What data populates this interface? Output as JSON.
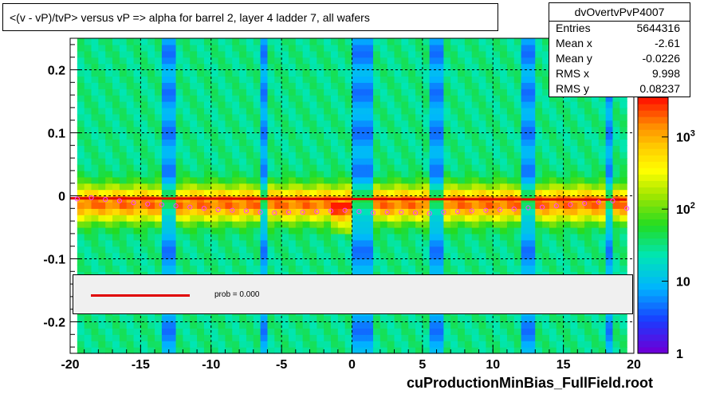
{
  "title": "<(v - vP)/tvP> versus   vP => alpha for barrel 2, layer 4 ladder 7, all wafers",
  "stats": {
    "name": "dvOvertvPvP4007",
    "rows": [
      {
        "label": "Entries",
        "value": "5644316"
      },
      {
        "label": "Mean x",
        "value": "-2.61"
      },
      {
        "label": "Mean y",
        "value": "-0.0226"
      },
      {
        "label": "RMS x",
        "value": "9.998"
      },
      {
        "label": "RMS y",
        "value": "0.08237"
      }
    ]
  },
  "fit_legend": {
    "label": "prob = 0.000"
  },
  "x_title": "cuProductionMinBias_FullField.root",
  "colors": {
    "fit_line": "#e00000",
    "profile_marker": "#ff44ff",
    "legend_bg": "#f0f0f0"
  },
  "chart_data": {
    "type": "heatmap",
    "title": "<(v - vP)/tvP> versus   vP => alpha for barrel 2, layer 4 ladder 7, all wafers",
    "xlim": [
      -20,
      20
    ],
    "ylim": [
      -0.25,
      0.25
    ],
    "x_ticks": [
      -20,
      -15,
      -10,
      -5,
      0,
      5,
      10,
      15,
      20
    ],
    "y_ticks": [
      -0.2,
      -0.1,
      0,
      0.1,
      0.2
    ],
    "y_tick_labels": [
      "-0.2",
      "-0.1",
      "0",
      "0.1",
      "0.2"
    ],
    "grid": true,
    "z_scale": "log",
    "z_ticks": [
      1,
      10,
      100,
      1000
    ],
    "z_tick_labels": [
      "1",
      "10",
      "10^2",
      "10^3"
    ],
    "bright_columns_x": [
      -13,
      -6.2,
      0.1,
      0.5,
      1.3,
      5.9,
      6.2,
      12.5,
      18.4
    ],
    "profile": {
      "name": "profile",
      "x": [
        -19.5,
        -18.5,
        -17.5,
        -16.5,
        -15.5,
        -14.5,
        -13.5,
        -12.5,
        -11.5,
        -10.5,
        -9.5,
        -8.5,
        -7.5,
        -6.5,
        -5.5,
        -4.5,
        -3.5,
        -2.5,
        -1.5,
        -0.5,
        0.5,
        1.5,
        2.5,
        3.5,
        4.5,
        5.5,
        6.5,
        7.5,
        8.5,
        9.5,
        10.5,
        11.5,
        12.5,
        13.5,
        14.5,
        15.5,
        16.5,
        17.5,
        18.5,
        19.5
      ],
      "y": [
        -0.005,
        -0.003,
        -0.006,
        -0.008,
        -0.011,
        -0.013,
        -0.014,
        -0.016,
        -0.018,
        -0.02,
        -0.022,
        -0.023,
        -0.024,
        -0.026,
        -0.027,
        -0.026,
        -0.026,
        -0.025,
        -0.024,
        -0.023,
        -0.025,
        -0.027,
        -0.026,
        -0.026,
        -0.027,
        -0.028,
        -0.026,
        -0.025,
        -0.024,
        -0.023,
        -0.022,
        -0.021,
        -0.019,
        -0.018,
        -0.016,
        -0.014,
        -0.012,
        -0.01,
        -0.008,
        -0.02
      ]
    },
    "fit": {
      "name": "fit",
      "x": [
        -20,
        19.5
      ],
      "y": [
        -0.004,
        -0.006
      ]
    }
  }
}
